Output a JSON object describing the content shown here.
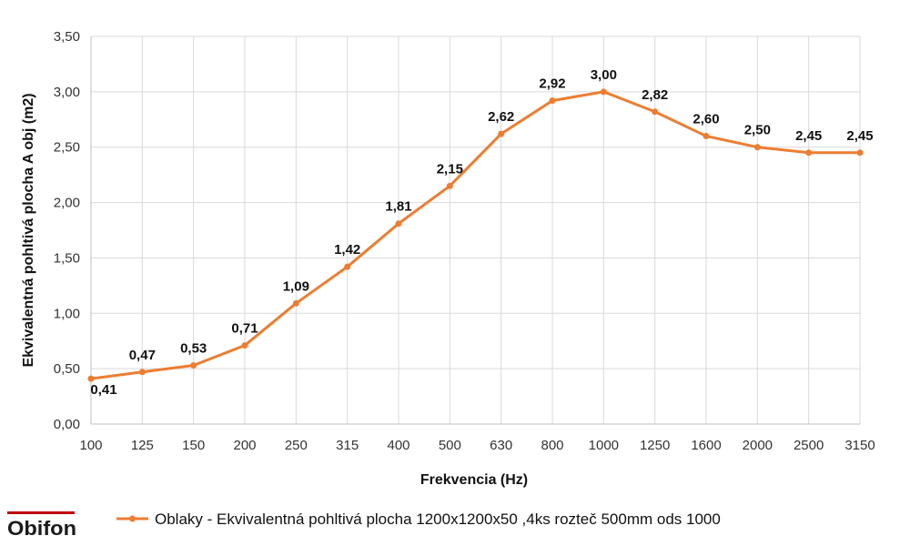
{
  "chart_data": {
    "type": "line",
    "title": "",
    "xlabel": "Frekvencia (Hz)",
    "ylabel": "Ekvivalentná pohltivá plocha A obj (m2)",
    "categories": [
      "100",
      "125",
      "150",
      "200",
      "250",
      "315",
      "400",
      "500",
      "630",
      "800",
      "1000",
      "1250",
      "1600",
      "2000",
      "2500",
      "3150"
    ],
    "series": [
      {
        "name": "Oblaky - Ekvivalentná pohltivá plocha 1200x1200x50 ,4ks rozteč 500mm ods 1000",
        "values": [
          0.41,
          0.47,
          0.53,
          0.71,
          1.09,
          1.42,
          1.81,
          2.15,
          2.62,
          2.92,
          3.0,
          2.82,
          2.6,
          2.5,
          2.45,
          2.45
        ],
        "labels": [
          "0,41",
          "0,47",
          "0,53",
          "0,71",
          "1,09",
          "1,42",
          "1,81",
          "2,15",
          "2,62",
          "2,92",
          "3,00",
          "2,82",
          "2,60",
          "2,50",
          "2,45",
          "2,45"
        ],
        "color": "#ED7D31"
      }
    ],
    "ylim": [
      0,
      3.5
    ],
    "yticks": [
      0,
      0.5,
      1.0,
      1.5,
      2.0,
      2.5,
      3.0,
      3.5
    ],
    "ytick_labels": [
      "0,00",
      "0,50",
      "1,00",
      "1,50",
      "2,00",
      "2,50",
      "3,00",
      "3,50"
    ],
    "grid": true,
    "legend_position": "bottom"
  },
  "logo": {
    "text": "Obifon",
    "accent": "#C00000"
  },
  "colors": {
    "grid": "#D9D9D9",
    "axis": "#BFBFBF"
  }
}
